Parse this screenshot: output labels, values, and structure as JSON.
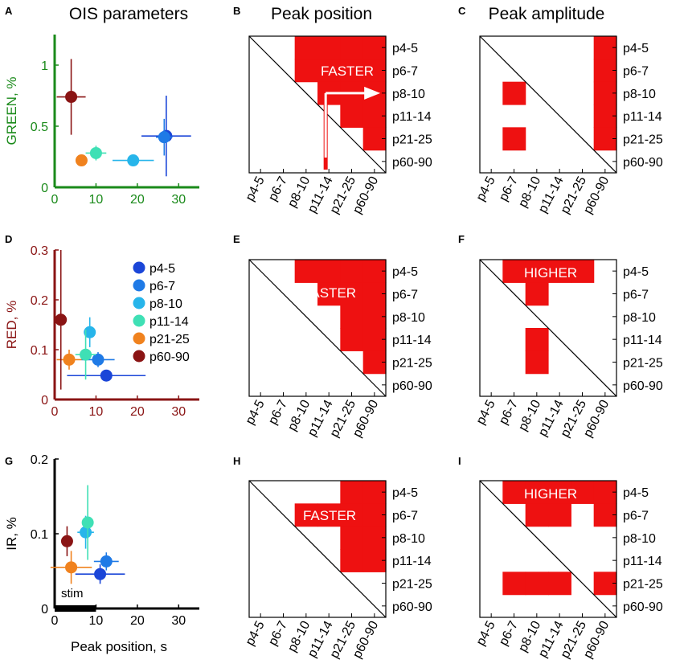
{
  "panel_letters": [
    "A",
    "B",
    "C",
    "D",
    "E",
    "F",
    "G",
    "H",
    "I"
  ],
  "column_titles": [
    "OIS parameters",
    "Peak position",
    "Peak amplitude"
  ],
  "groups": [
    "p4-5",
    "p6-7",
    "p8-10",
    "p11-14",
    "p21-25",
    "p60-90"
  ],
  "colors": {
    "group_colors": [
      "#1b46d8",
      "#1f7ae6",
      "#27b5ea",
      "#3fe0b5",
      "#f0821e",
      "#8a1414"
    ],
    "green_axis": "#1a8a1a",
    "red_axis": "#8a1414",
    "ir_axis": "#000000",
    "matrix_fill": "#ee1111"
  },
  "annotations": {
    "faster": "FASTER",
    "higher": "HIGHER",
    "stim": "stim"
  },
  "chart_data": [
    {
      "type": "scatter",
      "panel": "A",
      "title": "OIS parameters",
      "xlabel": "",
      "ylabel": "GREEN, %",
      "xlim": [
        0,
        35
      ],
      "ylim": [
        0,
        1.25
      ],
      "xticks": [
        "0",
        "10",
        "20",
        "30"
      ],
      "yticks": [
        "0",
        "0.5",
        "1"
      ],
      "points": [
        {
          "group": "p4-5",
          "x": 27,
          "y": 0.42,
          "xerr": 6,
          "yerr": 0.33
        },
        {
          "group": "p6-7",
          "x": 26.5,
          "y": 0.41,
          "xerr": 2,
          "yerr": 0.15
        },
        {
          "group": "p8-10",
          "x": 19,
          "y": 0.22,
          "xerr": 5,
          "yerr": 0.04
        },
        {
          "group": "p11-14",
          "x": 10,
          "y": 0.28,
          "xerr": 2.5,
          "yerr": 0.06
        },
        {
          "group": "p21-25",
          "x": 6.5,
          "y": 0.22,
          "xerr": 1,
          "yerr": 0.02
        },
        {
          "group": "p60-90",
          "x": 4,
          "y": 0.74,
          "xerr": 3.5,
          "yerr": 0.31
        }
      ]
    },
    {
      "type": "heatmap",
      "panel": "B",
      "title": "Peak position",
      "rows": [
        "p4-5",
        "p6-7",
        "p8-10",
        "p11-14",
        "p21-25",
        "p60-90"
      ],
      "cols": [
        "p4-5",
        "p6-7",
        "p8-10",
        "p11-14",
        "p21-25",
        "p60-90"
      ],
      "significant": [
        [
          0,
          2
        ],
        [
          0,
          3
        ],
        [
          0,
          4
        ],
        [
          0,
          5
        ],
        [
          1,
          2
        ],
        [
          1,
          3
        ],
        [
          1,
          4
        ],
        [
          1,
          5
        ],
        [
          2,
          3
        ],
        [
          2,
          4
        ],
        [
          2,
          5
        ],
        [
          3,
          4
        ],
        [
          3,
          5
        ],
        [
          4,
          5
        ]
      ],
      "annotation": "FASTER"
    },
    {
      "type": "heatmap",
      "panel": "C",
      "title": "Peak amplitude",
      "rows": [
        "p4-5",
        "p6-7",
        "p8-10",
        "p11-14",
        "p21-25",
        "p60-90"
      ],
      "cols": [
        "p4-5",
        "p6-7",
        "p8-10",
        "p11-14",
        "p21-25",
        "p60-90"
      ],
      "significant": [
        [
          0,
          5
        ],
        [
          1,
          5
        ],
        [
          2,
          5
        ],
        [
          3,
          5
        ],
        [
          4,
          5
        ],
        [
          2,
          1
        ],
        [
          4,
          1
        ]
      ],
      "annotation": "HIGHER"
    },
    {
      "type": "scatter",
      "panel": "D",
      "xlabel": "",
      "ylabel": "RED, %",
      "xlim": [
        0,
        35
      ],
      "ylim": [
        0,
        0.3
      ],
      "xticks": [
        "0",
        "10",
        "20",
        "30"
      ],
      "yticks": [
        "0",
        "0.1",
        "0.2",
        "0.3"
      ],
      "legend": [
        "p4-5",
        "p6-7",
        "p8-10",
        "p11-14",
        "p21-25",
        "p60-90"
      ],
      "points": [
        {
          "group": "p4-5",
          "x": 12.5,
          "y": 0.048,
          "xerr": 9.5,
          "yerr": 0
        },
        {
          "group": "p6-7",
          "x": 10.5,
          "y": 0.08,
          "xerr": 4,
          "yerr": 0.015
        },
        {
          "group": "p8-10",
          "x": 8.5,
          "y": 0.135,
          "xerr": 1,
          "yerr": 0.03
        },
        {
          "group": "p11-14",
          "x": 7.5,
          "y": 0.09,
          "xerr": 2.5,
          "yerr": 0.05
        },
        {
          "group": "p21-25",
          "x": 3.5,
          "y": 0.08,
          "xerr": 3,
          "yerr": 0.02
        },
        {
          "group": "p60-90",
          "x": 1.5,
          "y": 0.16,
          "xerr": 0,
          "yerr": 0.14
        }
      ]
    },
    {
      "type": "heatmap",
      "panel": "E",
      "rows": [
        "p4-5",
        "p6-7",
        "p8-10",
        "p11-14",
        "p21-25",
        "p60-90"
      ],
      "cols": [
        "p4-5",
        "p6-7",
        "p8-10",
        "p11-14",
        "p21-25",
        "p60-90"
      ],
      "significant": [
        [
          0,
          2
        ],
        [
          0,
          3
        ],
        [
          0,
          4
        ],
        [
          0,
          5
        ],
        [
          1,
          3
        ],
        [
          1,
          4
        ],
        [
          1,
          5
        ],
        [
          2,
          4
        ],
        [
          2,
          5
        ],
        [
          3,
          4
        ],
        [
          3,
          5
        ],
        [
          4,
          5
        ]
      ],
      "annotation": "FASTER"
    },
    {
      "type": "heatmap",
      "panel": "F",
      "rows": [
        "p4-5",
        "p6-7",
        "p8-10",
        "p11-14",
        "p21-25",
        "p60-90"
      ],
      "cols": [
        "p4-5",
        "p6-7",
        "p8-10",
        "p11-14",
        "p21-25",
        "p60-90"
      ],
      "significant": [
        [
          0,
          1
        ],
        [
          0,
          2
        ],
        [
          0,
          3
        ],
        [
          0,
          4
        ],
        [
          1,
          2
        ],
        [
          3,
          2
        ],
        [
          4,
          2
        ]
      ],
      "annotation": "HIGHER"
    },
    {
      "type": "scatter",
      "panel": "G",
      "xlabel": "Peak position, s",
      "ylabel": "IR, %",
      "xlim": [
        0,
        35
      ],
      "ylim": [
        0,
        0.2
      ],
      "xticks": [
        "0",
        "10",
        "20",
        "30"
      ],
      "yticks": [
        "0",
        "0.1",
        "0.2"
      ],
      "stim_window": [
        0,
        10
      ],
      "points": [
        {
          "group": "p4-5",
          "x": 11,
          "y": 0.046,
          "xerr": 6,
          "yerr": 0.013
        },
        {
          "group": "p6-7",
          "x": 12.5,
          "y": 0.063,
          "xerr": 3,
          "yerr": 0.012
        },
        {
          "group": "p8-10",
          "x": 7.5,
          "y": 0.102,
          "xerr": 2,
          "yerr": 0.022
        },
        {
          "group": "p11-14",
          "x": 8,
          "y": 0.115,
          "xerr": 1,
          "yerr": 0.05
        },
        {
          "group": "p21-25",
          "x": 4,
          "y": 0.055,
          "xerr": 5,
          "yerr": 0.022
        },
        {
          "group": "p60-90",
          "x": 3,
          "y": 0.09,
          "xerr": 1,
          "yerr": 0.02
        }
      ]
    },
    {
      "type": "heatmap",
      "panel": "H",
      "rows": [
        "p4-5",
        "p6-7",
        "p8-10",
        "p11-14",
        "p21-25",
        "p60-90"
      ],
      "cols": [
        "p4-5",
        "p6-7",
        "p8-10",
        "p11-14",
        "p21-25",
        "p60-90"
      ],
      "significant": [
        [
          0,
          4
        ],
        [
          0,
          5
        ],
        [
          1,
          2
        ],
        [
          1,
          3
        ],
        [
          1,
          4
        ],
        [
          1,
          5
        ],
        [
          2,
          4
        ],
        [
          2,
          5
        ],
        [
          3,
          4
        ],
        [
          3,
          5
        ]
      ],
      "annotation": "FASTER"
    },
    {
      "type": "heatmap",
      "panel": "I",
      "rows": [
        "p4-5",
        "p6-7",
        "p8-10",
        "p11-14",
        "p21-25",
        "p60-90"
      ],
      "cols": [
        "p4-5",
        "p6-7",
        "p8-10",
        "p11-14",
        "p21-25",
        "p60-90"
      ],
      "significant": [
        [
          0,
          1
        ],
        [
          0,
          2
        ],
        [
          0,
          3
        ],
        [
          0,
          4
        ],
        [
          0,
          5
        ],
        [
          1,
          2
        ],
        [
          1,
          3
        ],
        [
          1,
          5
        ],
        [
          4,
          1
        ],
        [
          4,
          2
        ],
        [
          4,
          3
        ],
        [
          4,
          5
        ]
      ],
      "annotation": "HIGHER"
    }
  ]
}
